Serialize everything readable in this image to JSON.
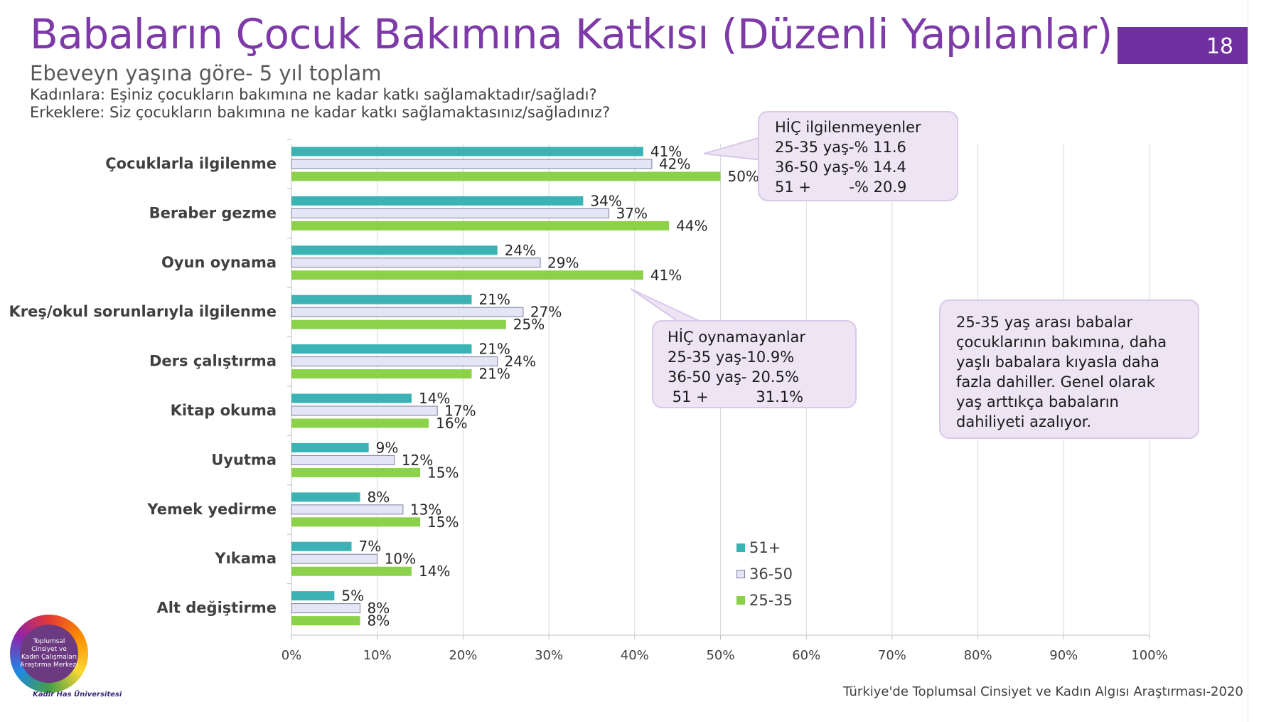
{
  "header": {
    "title": "Babaların Çocuk Bakımına Katkısı (Düzenli Yapılanlar)",
    "page_number": "18",
    "subtitle": "Ebeveyn yaşına göre- 5 yıl toplam",
    "question_women": "Kadınlara: Eşiniz çocukların bakımına ne kadar katkı sağlamaktadır/sağladı?",
    "question_men": "Erkeklere: Siz çocukların bakımına ne kadar katkı sağlamaktasınız/sağladınız?"
  },
  "callouts": {
    "c1": [
      "HİÇ ilgilenmeyenler",
      "25-35 yaş-% 11.6",
      "36-50 yaş-% 14.4",
      "51 +        -% 20.9"
    ],
    "c2": [
      "HİÇ oynamayanlar",
      "25-35 yaş-10.9%",
      "36-50 yaş- 20.5%",
      " 51 +          31.1%"
    ],
    "c3": [
      "25-35 yaş arası babalar",
      "çocuklarının bakımına, daha",
      "yaşlı babalara kıyasla daha",
      "fazla dahiller. Genel olarak",
      "yaş arttıkça babaların",
      "dahiliyeti azalıyor."
    ]
  },
  "logo": {
    "text": [
      "Toplumsal",
      "Cinsiyet ve",
      "Kadın Çalışmaları",
      "Araştırma Merkezi"
    ],
    "university": "Kadir Has Üniversitesi"
  },
  "source": "Türkiye'de Toplumsal Cinsiyet ve Kadın Algısı Araştırması-2020",
  "colors": {
    "s51": "#3bb3b5",
    "s3650": "#e4e6f5",
    "s2535": "#8bd14a",
    "title": "#7d3aa8",
    "badge": "#7030a0"
  },
  "chart_data": {
    "type": "bar",
    "orientation": "horizontal",
    "categories": [
      "Çocuklarla ilgilenme",
      "Beraber gezme",
      "Oyun oynama",
      "Kreş/okul sorunlarıyla ilgilenme",
      "Ders çalıştırma",
      "Kitap okuma",
      "Uyutma",
      "Yemek yedirme",
      "Yıkama",
      "Alt değiştirme"
    ],
    "series": [
      {
        "name": "51+",
        "values": [
          41,
          34,
          24,
          21,
          21,
          14,
          9,
          8,
          7,
          5
        ]
      },
      {
        "name": "36-50",
        "values": [
          42,
          37,
          29,
          27,
          24,
          17,
          12,
          13,
          10,
          8
        ]
      },
      {
        "name": "25-35",
        "values": [
          50,
          44,
          41,
          25,
          21,
          16,
          15,
          15,
          14,
          8
        ]
      }
    ],
    "value_suffix": "%",
    "xlim": [
      0,
      100
    ],
    "xticks": [
      "0%",
      "10%",
      "20%",
      "30%",
      "40%",
      "50%",
      "60%",
      "70%",
      "80%",
      "90%",
      "100%"
    ],
    "grid": true,
    "legend_position": "bottom-right"
  }
}
